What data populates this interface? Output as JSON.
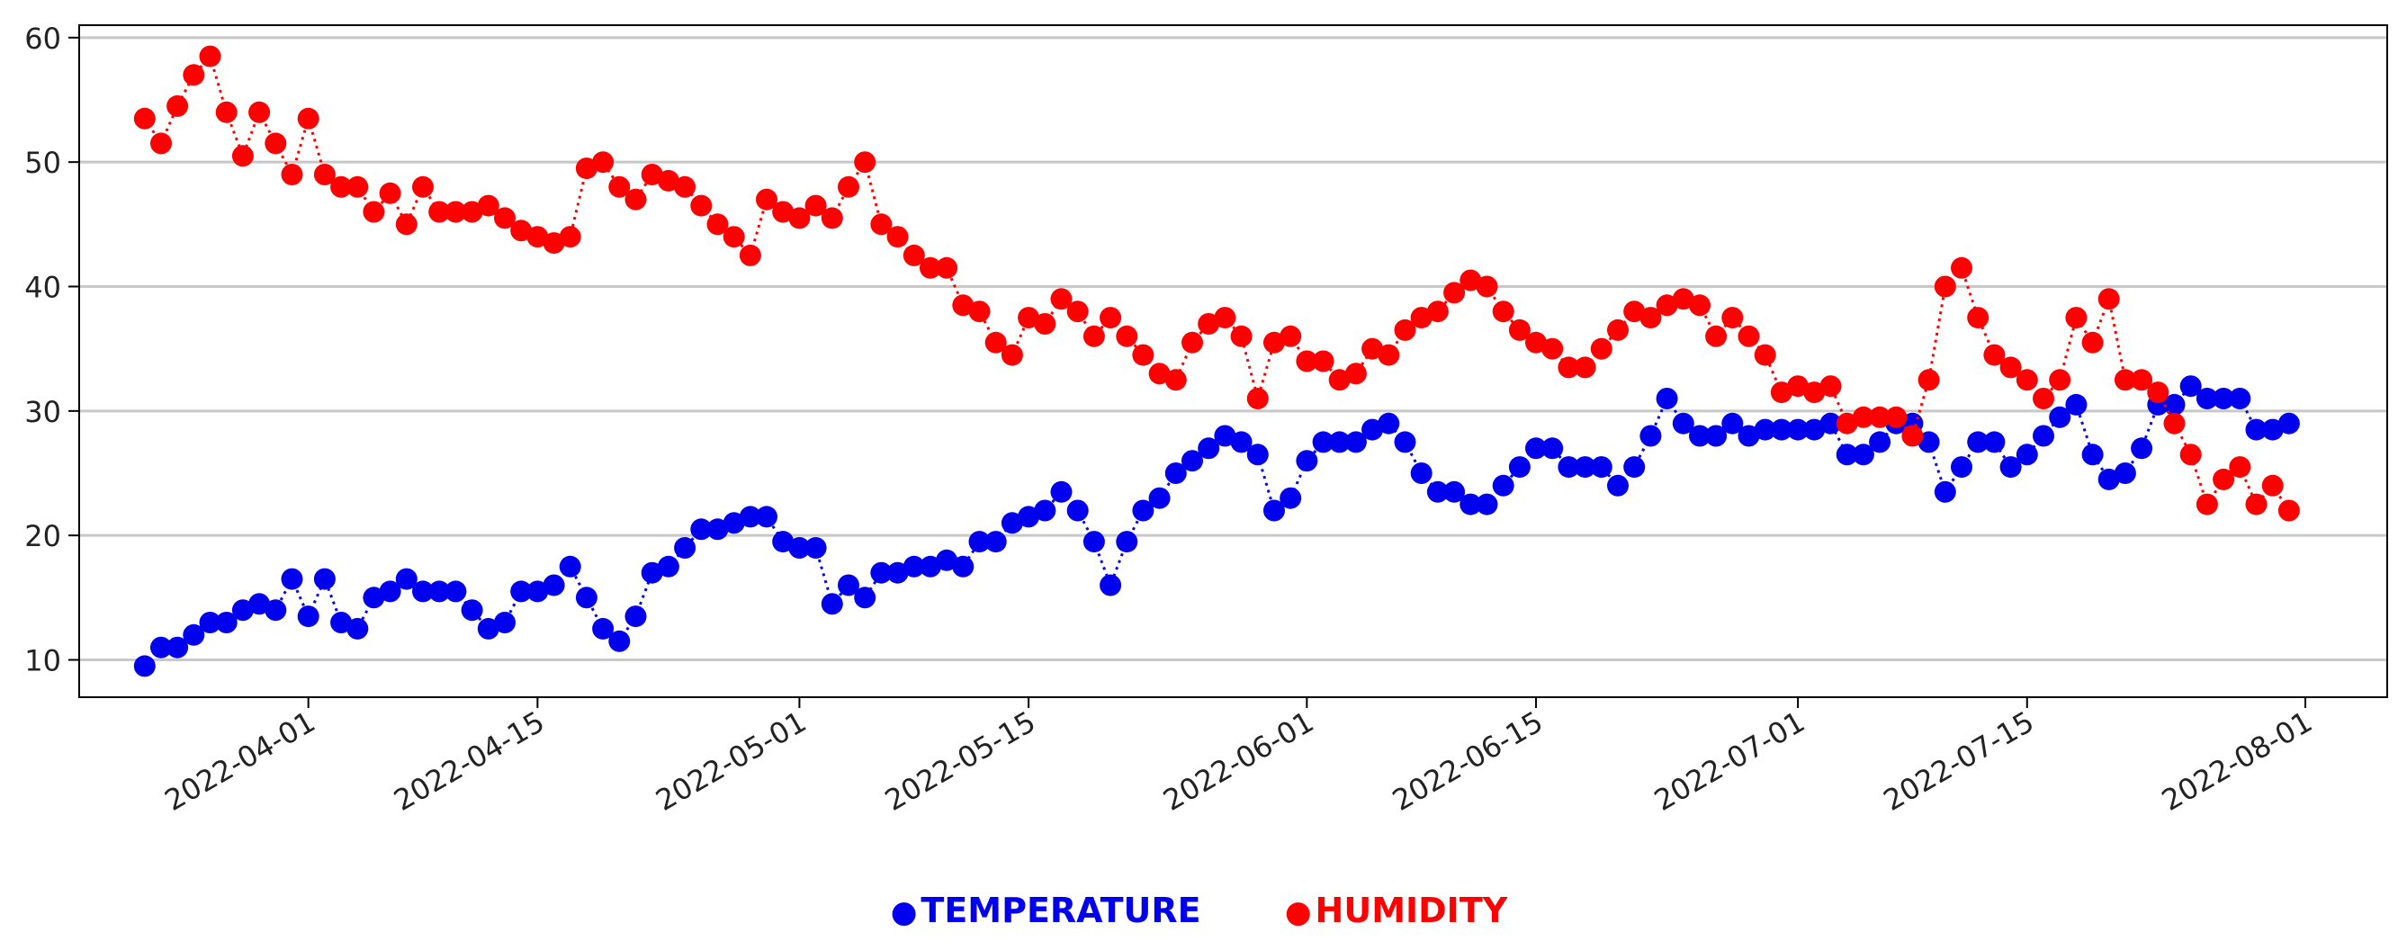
{
  "chart_data": {
    "type": "line",
    "xaxis_type": "date",
    "x_ticks": [
      "2022-04-01",
      "2022-04-15",
      "2022-05-01",
      "2022-05-15",
      "2022-06-01",
      "2022-06-15",
      "2022-07-01",
      "2022-07-15",
      "2022-08-01"
    ],
    "y_ticks": [
      10,
      20,
      30,
      40,
      50,
      60
    ],
    "xlim": [
      "2022-03-18",
      "2022-08-06"
    ],
    "ylim": [
      7,
      61
    ],
    "grid": "horizontal",
    "line_style": "dotted",
    "marker": "circle",
    "legend_position": "bottom-center",
    "legend_labels": {
      "temperature_label": "TEMPERATURE",
      "humidity_label": "HUMIDITY"
    },
    "series": [
      {
        "name": "TEMPERATURE",
        "color": "#0000ee",
        "start_date": "2022-03-22",
        "values": [
          9.5,
          11,
          11,
          12,
          13,
          13,
          14,
          14.5,
          14,
          16.5,
          13.5,
          16.5,
          13,
          12.5,
          15,
          15.5,
          16.5,
          15.5,
          15.5,
          15.5,
          14,
          12.5,
          13,
          15.5,
          15.5,
          16,
          17.5,
          15,
          12.5,
          11.5,
          13.5,
          17,
          17.5,
          19,
          20.5,
          20.5,
          21,
          21.5,
          21.5,
          19.5,
          19,
          19,
          14.5,
          16,
          15,
          17,
          17,
          17.5,
          17.5,
          18,
          17.5,
          19.5,
          19.5,
          21,
          21.5,
          22,
          23.5,
          22,
          19.5,
          16,
          19.5,
          22,
          23,
          25,
          26,
          27,
          28,
          27.5,
          26.5,
          22,
          23,
          26,
          27.5,
          27.5,
          27.5,
          28.5,
          29,
          27.5,
          25,
          23.5,
          23.5,
          22.5,
          22.5,
          24,
          25.5,
          27,
          27,
          25.5,
          25.5,
          25.5,
          24,
          25.5,
          28,
          31,
          29,
          28,
          28,
          29,
          28,
          28.5,
          28.5,
          28.5,
          28.5,
          29,
          26.5,
          26.5,
          27.5,
          29,
          29,
          27.5,
          23.5,
          25.5,
          27.5,
          27.5,
          25.5,
          26.5,
          28,
          29.5,
          30.5,
          26.5,
          24.5,
          25,
          27,
          30.5,
          30.5,
          32,
          31,
          31,
          31,
          28.5,
          28.5,
          29
        ]
      },
      {
        "name": "HUMIDITY",
        "color": "#ff0000",
        "start_date": "2022-03-22",
        "values": [
          53.5,
          51.5,
          54.5,
          57,
          58.5,
          54,
          50.5,
          54,
          51.5,
          49,
          53.5,
          49,
          48,
          48,
          46,
          47.5,
          45,
          48,
          46,
          46,
          46,
          46.5,
          45.5,
          44.5,
          44,
          43.5,
          44,
          49.5,
          50,
          48,
          47,
          49,
          48.5,
          48,
          46.5,
          45,
          44,
          42.5,
          47,
          46,
          45.5,
          46.5,
          45.5,
          48,
          50,
          45,
          44,
          42.5,
          41.5,
          41.5,
          38.5,
          38,
          35.5,
          34.5,
          37.5,
          37,
          39,
          38,
          36,
          37.5,
          36,
          34.5,
          33,
          32.5,
          35.5,
          37,
          37.5,
          36,
          31,
          35.5,
          36,
          34,
          34,
          32.5,
          33,
          35,
          34.5,
          36.5,
          37.5,
          38,
          39.5,
          40.5,
          40,
          38,
          36.5,
          35.5,
          35,
          33.5,
          33.5,
          35,
          36.5,
          38,
          37.5,
          38.5,
          39,
          38.5,
          36,
          37.5,
          36,
          34.5,
          31.5,
          32,
          31.5,
          32,
          29,
          29.5,
          29.5,
          29.5,
          28,
          32.5,
          40,
          41.5,
          37.5,
          34.5,
          33.5,
          32.5,
          31,
          32.5,
          37.5,
          35.5,
          39,
          32.5,
          32.5,
          31.5,
          29,
          26.5,
          22.5,
          24.5,
          25.5,
          22.5,
          24,
          22
        ]
      }
    ]
  }
}
